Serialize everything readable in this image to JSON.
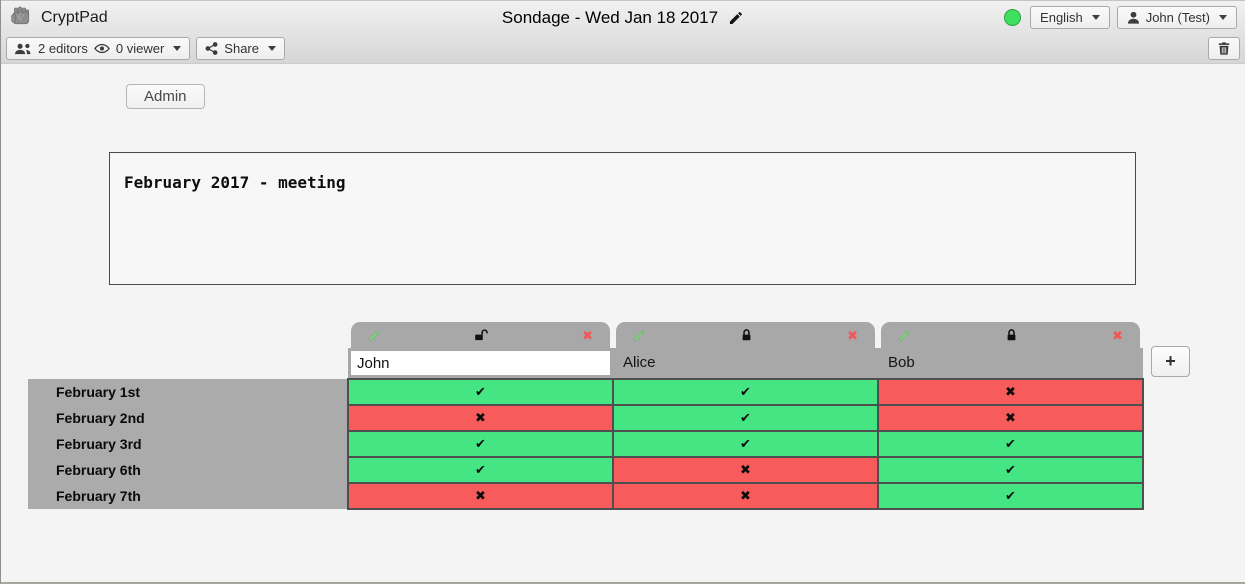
{
  "topbar": {
    "app_name": "CryptPad",
    "title": "Sondage - Wed Jan 18 2017",
    "language_label": "English",
    "user_label": "John (Test)"
  },
  "toolbar": {
    "editors_label": "2 editors",
    "viewers_label": "0 viewer",
    "share_label": "Share"
  },
  "admin": {
    "label": "Admin"
  },
  "description_text": "February 2017 - meeting",
  "poll": {
    "columns": [
      {
        "name": "John",
        "editable": true,
        "locked": false
      },
      {
        "name": "Alice",
        "editable": false,
        "locked": true
      },
      {
        "name": "Bob",
        "editable": false,
        "locked": true
      }
    ],
    "rows": [
      {
        "label": "February 1st",
        "votes": [
          "yes",
          "yes",
          "no"
        ]
      },
      {
        "label": "February 2nd",
        "votes": [
          "no",
          "yes",
          "no"
        ]
      },
      {
        "label": "February 3rd",
        "votes": [
          "yes",
          "yes",
          "yes"
        ]
      },
      {
        "label": "February 6th",
        "votes": [
          "yes",
          "no",
          "yes"
        ]
      },
      {
        "label": "February 7th",
        "votes": [
          "no",
          "no",
          "yes"
        ]
      }
    ],
    "add_column_label": "+"
  },
  "icons": {
    "yes_mark": "✔",
    "no_mark": "✖",
    "remove_column": "✖"
  },
  "colors": {
    "yes": "#46E583",
    "no": "#F85B5B",
    "header": "#a8a8a8",
    "labels": "#ababab",
    "status": "#3FE05E"
  }
}
